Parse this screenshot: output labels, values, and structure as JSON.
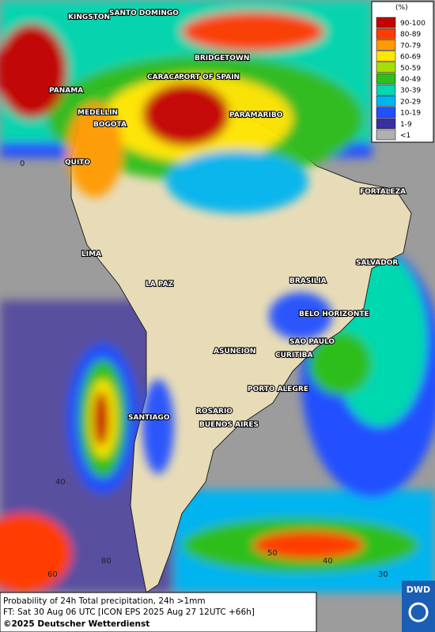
{
  "legend": {
    "title": "(%)",
    "items": [
      {
        "label": "90-100",
        "color": "#c40000"
      },
      {
        "label": "80-89",
        "color": "#ff3c00"
      },
      {
        "label": "70-79",
        "color": "#ff9a00"
      },
      {
        "label": "60-69",
        "color": "#ffe600"
      },
      {
        "label": "50-59",
        "color": "#a6e000"
      },
      {
        "label": "40-49",
        "color": "#2fbe1e"
      },
      {
        "label": "30-39",
        "color": "#00d8b0"
      },
      {
        "label": "20-29",
        "color": "#00b4f0"
      },
      {
        "label": "10-19",
        "color": "#2050ff"
      },
      {
        "label": "1-9",
        "color": "#3a2fa0"
      },
      {
        "label": "<1",
        "color": "#b0b0b0"
      }
    ]
  },
  "cities": [
    "KINGSTON",
    "SANTO DOMINGO",
    "BRIDGETOWN",
    "CARACAS",
    "PORT OF SPAIN",
    "PANAMA",
    "MEDELLIN",
    "BOGOTA",
    "PARAMARIBO",
    "QUITO",
    "FORTALEZA",
    "LIMA",
    "SALVADOR",
    "BRASILIA",
    "LA PAZ",
    "BELO HORIZONTE",
    "SAO PAULO",
    "ASUNCION",
    "CURITIBA",
    "PORTO ALEGRE",
    "ROSARIO",
    "BUENOS AIRES",
    "SANTIAGO"
  ],
  "grid_labels": [
    0,
    40,
    80,
    60,
    50,
    40,
    30
  ],
  "footer": {
    "line1": "Probability of 24h Total precipitation, 24h >1mm",
    "line2": "FT: Sat 30 Aug 06 UTC [ICON EPS 2025 Aug 27 12UTC +66h]",
    "line3": "©2025 Deutscher Wetterdienst",
    "logo": "DWD"
  }
}
